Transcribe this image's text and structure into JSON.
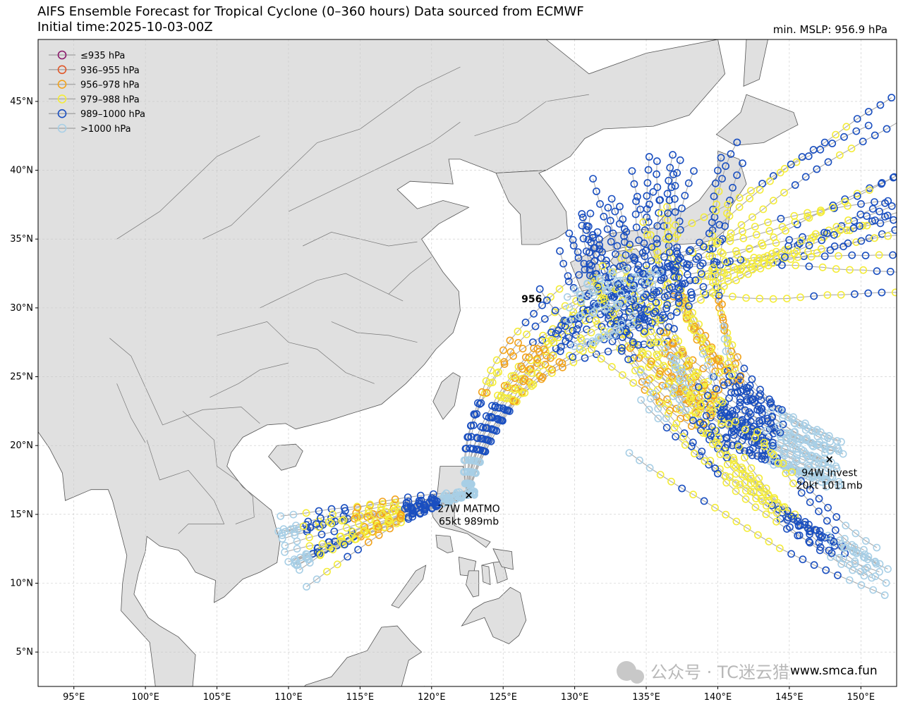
{
  "header": {
    "title": "AIFS Ensemble Forecast for Tropical Cyclone (0–360 hours) Data sourced from ECMWF",
    "subtitle": "Initial time:2025-10-03-00Z",
    "min_mslp": "min. MSLP: 956.9 hPa"
  },
  "map": {
    "extent": {
      "lon": [
        92.5,
        152.5
      ],
      "lat": [
        2.5,
        49.5
      ]
    },
    "lat_ticks": [
      {
        "v": 45,
        "label": "45°N"
      },
      {
        "v": 40,
        "label": "40°N"
      },
      {
        "v": 35,
        "label": "35°N"
      },
      {
        "v": 30,
        "label": "30°N"
      },
      {
        "v": 25,
        "label": "25°N"
      },
      {
        "v": 20,
        "label": "20°N"
      },
      {
        "v": 15,
        "label": "15°N"
      },
      {
        "v": 10,
        "label": "10°N"
      },
      {
        "v": 5,
        "label": "5°N"
      }
    ],
    "lon_ticks": [
      {
        "v": 95,
        "label": "95°E"
      },
      {
        "v": 100,
        "label": "100°E"
      },
      {
        "v": 105,
        "label": "105°E"
      },
      {
        "v": 110,
        "label": "110°E"
      },
      {
        "v": 115,
        "label": "115°E"
      },
      {
        "v": 120,
        "label": "120°E"
      },
      {
        "v": 125,
        "label": "125°E"
      },
      {
        "v": 130,
        "label": "130°E"
      },
      {
        "v": 135,
        "label": "135°E"
      },
      {
        "v": 140,
        "label": "140°E"
      },
      {
        "v": 145,
        "label": "145°E"
      },
      {
        "v": 150,
        "label": "150°E"
      }
    ],
    "land_color": "#e0e0e0",
    "ocean_color": "#ffffff",
    "track_color": "#aaaaaa"
  },
  "legend": [
    {
      "label": "≤935 hPa",
      "color": "#8b1a6b"
    },
    {
      "label": "936–955 hPa",
      "color": "#e0582a"
    },
    {
      "label": "956–978 hPa",
      "color": "#f2a31c"
    },
    {
      "label": "979–988 hPa",
      "color": "#f4ec3a"
    },
    {
      "label": "989–1000 hPa",
      "color": "#1a4fc0"
    },
    {
      "label": ">1000 hPa",
      "color": "#a8cfe6"
    }
  ],
  "storms": [
    {
      "name": "27W MATMO",
      "info": "65kt 989mb",
      "lon": 122.6,
      "lat": 16.4
    },
    {
      "name": "94W Invest",
      "info": "20kt 1011mb",
      "lon": 147.8,
      "lat": 19.0
    }
  ],
  "min_marker": {
    "label": "956",
    "lon": 127.0,
    "lat": 30.4
  },
  "watermark": "公众号 · TC迷云猎",
  "url": "www.smca.fun"
}
